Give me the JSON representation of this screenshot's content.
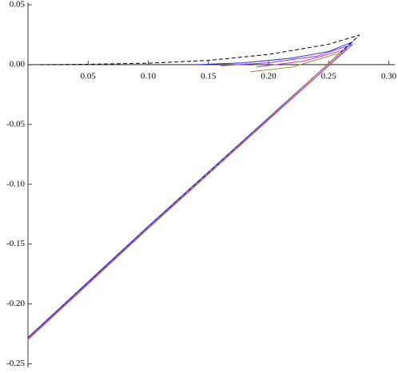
{
  "chart_data": {
    "type": "line",
    "xlim": [
      0,
      0.305
    ],
    "ylim": [
      -0.253,
      0.052
    ],
    "xticks": [
      0.05,
      {
        "value": 0.1,
        "label": "0.10"
      },
      0.15,
      {
        "value": 0.2,
        "label": "0.20"
      },
      0.25,
      {
        "value": 0.3,
        "label": "0.30"
      }
    ],
    "yticks": [
      0.05,
      {
        "value": 0,
        "label": "0.00"
      },
      -0.05,
      {
        "value": -0.1,
        "label": "-0.10"
      },
      -0.15,
      {
        "value": -0.2,
        "label": "-0.20"
      },
      -0.25
    ],
    "series": [
      {
        "color": "#000000",
        "dashed": true,
        "x": [
          0.01,
          0.05,
          0.1,
          0.15,
          0.2,
          0.25,
          0.2756,
          0.2,
          0.1,
          0
        ],
        "y": [
          0,
          0.0003,
          0.0012,
          0.0035,
          0.0085,
          0.017,
          0.0247,
          -0.045,
          -0.136,
          -0.228
        ]
      },
      {
        "color": "#2a2acf",
        "dashed": false,
        "x": [
          0.14,
          0.18,
          0.22,
          0.25,
          0.27,
          0.1,
          0
        ],
        "y": [
          0,
          0.0015,
          0.0055,
          0.011,
          0.019,
          -0.135,
          -0.228
        ]
      },
      {
        "color": "#8a3ad8",
        "dashed": false,
        "x": [
          0.16,
          0.2,
          0.24,
          0.27,
          0.1,
          0
        ],
        "y": [
          -0.001,
          0.0015,
          0.007,
          0.017,
          -0.136,
          -0.229
        ]
      },
      {
        "color": "#c23cb8",
        "dashed": false,
        "x": [
          0.19,
          0.23,
          0.265,
          0.1,
          0
        ],
        "y": [
          -0.002,
          0.003,
          0.013,
          -0.137,
          -0.229
        ]
      },
      {
        "color": "#a08a38",
        "dashed": false,
        "x": [
          0.185,
          0.22,
          0.26,
          0.1,
          0
        ],
        "y": [
          -0.006,
          -0.002,
          0.01,
          -0.137,
          -0.23
        ]
      }
    ]
  }
}
